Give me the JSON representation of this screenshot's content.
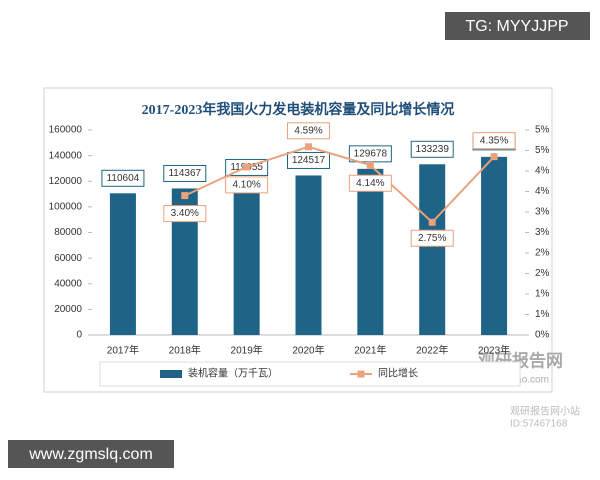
{
  "chart_data": {
    "type": "bar_line",
    "title": "2017-2023年我国火力发电装机容量及同比增长情况",
    "categories": [
      "2017年",
      "2018年",
      "2019年",
      "2020年",
      "2021年",
      "2022年",
      "2023年"
    ],
    "series": [
      {
        "name": "装机容量（万千瓦）",
        "color": "#1f6386",
        "type": "bar",
        "values": [
          110604,
          114367,
          119055,
          124517,
          129678,
          133239,
          139032
        ]
      },
      {
        "name": "同比增长",
        "color": "#e8a27c",
        "type": "line",
        "axis": "y2",
        "values": [
          null,
          3.4,
          4.1,
          4.59,
          4.14,
          2.75,
          4.35
        ],
        "value_labels": [
          null,
          "3.40%",
          "4.10%",
          "4.59%",
          "4.14%",
          "2.75%",
          "4.35%"
        ]
      }
    ],
    "ylim": [
      0,
      160000
    ],
    "yticks": [
      0,
      20000,
      40000,
      60000,
      80000,
      100000,
      120000,
      140000,
      160000
    ],
    "y2lim": [
      0,
      5
    ],
    "y2ticks": [
      {
        "value": 0,
        "label": "0%"
      },
      {
        "value": 0.5,
        "label": "1%"
      },
      {
        "value": 1,
        "label": "1%"
      },
      {
        "value": 1.5,
        "label": "2%"
      },
      {
        "value": 2,
        "label": "2%"
      },
      {
        "value": 2.5,
        "label": "3%"
      },
      {
        "value": 3,
        "label": "3%"
      },
      {
        "value": 3.5,
        "label": "4%"
      },
      {
        "value": 4,
        "label": "4%"
      },
      {
        "value": 4.5,
        "label": "5%"
      },
      {
        "value": 5,
        "label": "5%"
      }
    ],
    "grid": false,
    "legend": "bottom"
  },
  "watermarks": {
    "tg": "TG: MYYJJPP",
    "site": "www.zgmslq.com",
    "brand": "观研报告网",
    "brand_url": "chinabaogao.com",
    "station": "观研报告网小站",
    "station_id": "ID:57467168"
  }
}
